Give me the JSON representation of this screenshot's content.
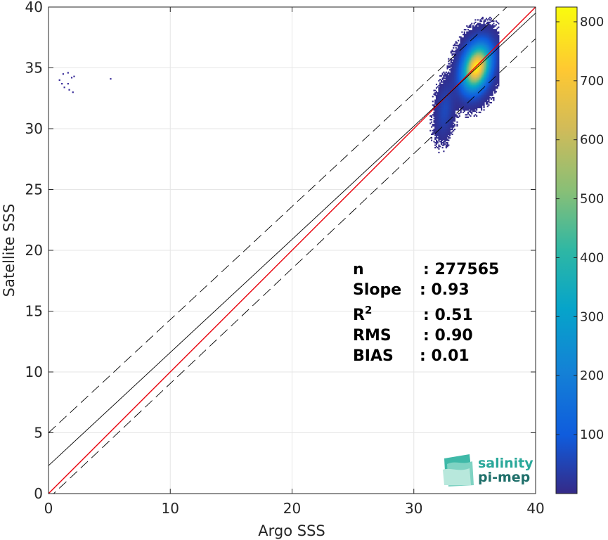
{
  "chart_data": {
    "type": "heatmap",
    "title": "",
    "xlabel": "Argo SSS",
    "ylabel": "Satellite SSS",
    "xlim": [
      0,
      40
    ],
    "ylim": [
      0,
      40
    ],
    "xticks": [
      0,
      10,
      20,
      30,
      40
    ],
    "yticks": [
      0,
      5,
      10,
      15,
      20,
      25,
      30,
      35,
      40
    ],
    "grid": true,
    "colorbar": {
      "colormap": "parula",
      "range": [
        0,
        825
      ],
      "ticks": [
        100,
        200,
        300,
        400,
        500,
        600,
        700,
        800
      ]
    },
    "density_clusters": [
      {
        "name": "main",
        "center": [
          35.1,
          35.0
        ],
        "spread": [
          1.1,
          1.8
        ],
        "peak": 800
      },
      {
        "name": "fresh-tail",
        "center": [
          32.5,
          31.5
        ],
        "spread": [
          0.7,
          2.0
        ],
        "peak": 60
      }
    ],
    "isolated_points": [
      [
        0.9,
        34.0
      ],
      [
        1.2,
        34.5
      ],
      [
        1.6,
        34.6
      ],
      [
        1.9,
        34.2
      ],
      [
        2.1,
        34.3
      ],
      [
        1.3,
        33.4
      ],
      [
        1.7,
        33.2
      ],
      [
        2.0,
        33.0
      ],
      [
        1.1,
        33.7
      ],
      [
        1.6,
        33.7
      ],
      [
        5.1,
        34.1
      ]
    ],
    "lines": [
      {
        "name": "identity",
        "color": "#e8000b",
        "style": "solid",
        "points": [
          [
            0,
            0
          ],
          [
            40,
            40
          ]
        ]
      },
      {
        "name": "regression",
        "color": "#000000",
        "style": "solid",
        "points": [
          [
            0,
            2.3
          ],
          [
            40,
            39.5
          ]
        ]
      },
      {
        "name": "upper-bound",
        "color": "#000000",
        "style": "dashed",
        "points": [
          [
            0,
            5.0
          ],
          [
            40,
            42.2
          ]
        ]
      },
      {
        "name": "lower-bound",
        "color": "#000000",
        "style": "dashed",
        "points": [
          [
            0,
            -0.4
          ],
          [
            40,
            37.4
          ]
        ]
      }
    ],
    "stats": [
      {
        "label": "n",
        "value": ": 277565"
      },
      {
        "label": "Slope",
        "value": ": 0.93"
      },
      {
        "label": "R",
        "sup": "2",
        "value": ": 0.51"
      },
      {
        "label": "RMS",
        "value": ": 0.90"
      },
      {
        "label": "BIAS",
        "value": ": 0.01"
      }
    ]
  },
  "logo": {
    "line1": "salinity",
    "line2": "pi-mep"
  }
}
